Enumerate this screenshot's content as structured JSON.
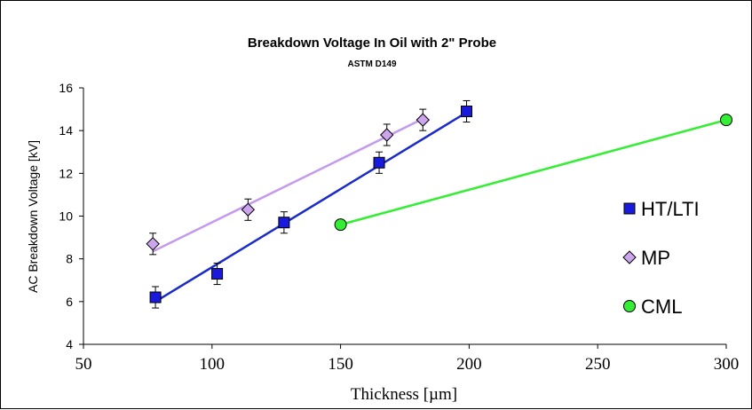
{
  "chart_data": {
    "type": "scatter",
    "title": "Breakdown Voltage In Oil with 2\" Probe",
    "subtitle": "ASTM D149",
    "xlabel": "Thickness [µm]",
    "ylabel": "AC Breakdown Voltage [kV]",
    "xlim": [
      50,
      300
    ],
    "ylim": [
      4,
      16
    ],
    "xticks": [
      50,
      100,
      150,
      200,
      250,
      300
    ],
    "yticks": [
      4,
      6,
      8,
      10,
      12,
      14,
      16
    ],
    "xtick_labels": [
      "50",
      "100",
      "150",
      "200",
      "250",
      "300"
    ],
    "ytick_labels": [
      "4",
      "6",
      "8",
      "10",
      "12",
      "14",
      "16"
    ],
    "grid": false,
    "legend_position": "right",
    "series": [
      {
        "name": "HT/LTI",
        "marker": "square",
        "color": "#1a1adc",
        "points": [
          {
            "x": 78,
            "y": 6.2,
            "err": 0.5
          },
          {
            "x": 102,
            "y": 7.3,
            "err": 0.5
          },
          {
            "x": 128,
            "y": 9.7,
            "err": 0.5
          },
          {
            "x": 165,
            "y": 12.5,
            "err": 0.5
          },
          {
            "x": 199,
            "y": 14.9,
            "err": 0.5
          }
        ],
        "trendline": {
          "color": "#1b2bc8",
          "x": [
            78,
            199
          ],
          "y": [
            6.0,
            14.85
          ]
        }
      },
      {
        "name": "MP",
        "marker": "diamond",
        "color": "#cda5ee",
        "points": [
          {
            "x": 77,
            "y": 8.7,
            "err": 0.5
          },
          {
            "x": 114,
            "y": 10.3,
            "err": 0.5
          },
          {
            "x": 168,
            "y": 13.8,
            "err": 0.5
          },
          {
            "x": 182,
            "y": 14.5,
            "err": 0.5
          }
        ],
        "trendline": {
          "color": "#c49aee",
          "x": [
            77,
            182
          ],
          "y": [
            8.35,
            14.55
          ]
        }
      },
      {
        "name": "CML",
        "marker": "circle",
        "color": "#33ee33",
        "points": [
          {
            "x": 150,
            "y": 9.6
          },
          {
            "x": 300,
            "y": 14.5
          }
        ],
        "trendline": {
          "color": "#33ee33",
          "x": [
            150,
            300
          ],
          "y": [
            9.6,
            14.5
          ]
        }
      }
    ]
  }
}
